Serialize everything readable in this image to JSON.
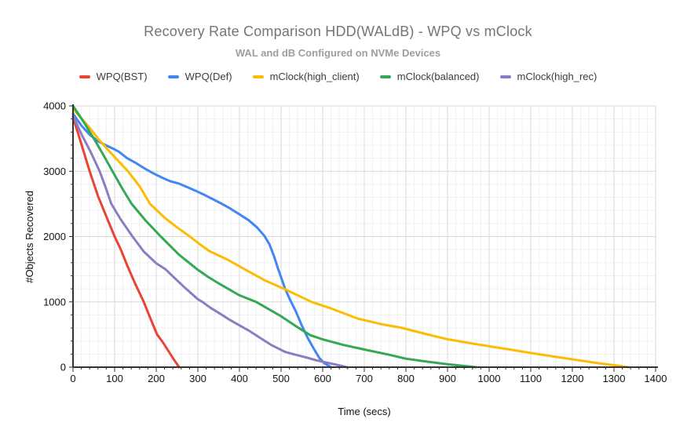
{
  "chart": {
    "title": "Recovery Rate Comparison HDD(WALdB) - WPQ vs mClock",
    "subtitle": "WAL and dB Configured on NVMe Devices",
    "xlabel": "Time (secs)",
    "ylabel": "#Objects Recovered"
  },
  "colors": {
    "title_text": "#757575",
    "subtitle_text": "#9e9e9e",
    "axis_text": "#111111",
    "axis_line": "#333333",
    "grid_major": "#d9d9d9",
    "grid_minor": "#f0f0f0",
    "background": "#ffffff"
  },
  "chart_data": {
    "type": "line",
    "title": "Recovery Rate Comparison HDD(WALdB) - WPQ vs mClock",
    "subtitle": "WAL and dB Configured on NVMe Devices",
    "xlabel": "Time (secs)",
    "ylabel": "#Objects Recovered",
    "xlim": [
      0,
      1400
    ],
    "ylim": [
      0,
      4000
    ],
    "x_tick_step": 100,
    "x_minor_step": 20,
    "y_tick_step": 1000,
    "y_minor_step": 200,
    "grid": true,
    "legend_position": "top",
    "series": [
      {
        "name": "WPQ(BST)",
        "color": "#ea4335",
        "points": [
          [
            0,
            3830
          ],
          [
            15,
            3520
          ],
          [
            40,
            3000
          ],
          [
            60,
            2620
          ],
          [
            85,
            2230
          ],
          [
            100,
            2000
          ],
          [
            115,
            1800
          ],
          [
            130,
            1560
          ],
          [
            150,
            1270
          ],
          [
            170,
            1000
          ],
          [
            185,
            760
          ],
          [
            202,
            500
          ],
          [
            215,
            390
          ],
          [
            230,
            240
          ],
          [
            243,
            110
          ],
          [
            255,
            0
          ]
        ]
      },
      {
        "name": "WPQ(Def)",
        "color": "#4285f4",
        "points": [
          [
            0,
            3880
          ],
          [
            20,
            3700
          ],
          [
            40,
            3560
          ],
          [
            60,
            3460
          ],
          [
            78,
            3400
          ],
          [
            95,
            3350
          ],
          [
            110,
            3300
          ],
          [
            130,
            3200
          ],
          [
            150,
            3130
          ],
          [
            170,
            3050
          ],
          [
            192,
            2970
          ],
          [
            215,
            2900
          ],
          [
            235,
            2845
          ],
          [
            255,
            2810
          ],
          [
            275,
            2755
          ],
          [
            295,
            2700
          ],
          [
            315,
            2640
          ],
          [
            335,
            2575
          ],
          [
            355,
            2510
          ],
          [
            375,
            2440
          ],
          [
            400,
            2340
          ],
          [
            422,
            2250
          ],
          [
            442,
            2140
          ],
          [
            460,
            2010
          ],
          [
            472,
            1880
          ],
          [
            483,
            1700
          ],
          [
            492,
            1520
          ],
          [
            501,
            1360
          ],
          [
            509,
            1210
          ],
          [
            521,
            1040
          ],
          [
            535,
            860
          ],
          [
            549,
            650
          ],
          [
            563,
            460
          ],
          [
            578,
            290
          ],
          [
            592,
            140
          ],
          [
            604,
            60
          ],
          [
            620,
            0
          ]
        ]
      },
      {
        "name": "mClock(high_client)",
        "color": "#fbbc04",
        "points": [
          [
            0,
            3950
          ],
          [
            20,
            3810
          ],
          [
            40,
            3665
          ],
          [
            60,
            3500
          ],
          [
            85,
            3320
          ],
          [
            110,
            3150
          ],
          [
            132,
            3000
          ],
          [
            160,
            2770
          ],
          [
            185,
            2500
          ],
          [
            220,
            2290
          ],
          [
            250,
            2140
          ],
          [
            281,
            2000
          ],
          [
            305,
            1880
          ],
          [
            328,
            1776
          ],
          [
            350,
            1710
          ],
          [
            370,
            1650
          ],
          [
            412,
            1500
          ],
          [
            460,
            1332
          ],
          [
            510,
            1190
          ],
          [
            540,
            1100
          ],
          [
            573,
            1000
          ],
          [
            620,
            900
          ],
          [
            684,
            745
          ],
          [
            740,
            660
          ],
          [
            787,
            607
          ],
          [
            850,
            505
          ],
          [
            900,
            428
          ],
          [
            950,
            372
          ],
          [
            1000,
            320
          ],
          [
            1050,
            270
          ],
          [
            1100,
            218
          ],
          [
            1150,
            168
          ],
          [
            1200,
            120
          ],
          [
            1250,
            72
          ],
          [
            1295,
            35
          ],
          [
            1335,
            0
          ]
        ]
      },
      {
        "name": "mClock(balanced)",
        "color": "#34a853",
        "points": [
          [
            0,
            4000
          ],
          [
            25,
            3760
          ],
          [
            50,
            3500
          ],
          [
            72,
            3260
          ],
          [
            95,
            3000
          ],
          [
            118,
            2740
          ],
          [
            141,
            2500
          ],
          [
            175,
            2240
          ],
          [
            211,
            2000
          ],
          [
            255,
            1720
          ],
          [
            298,
            1500
          ],
          [
            325,
            1380
          ],
          [
            353,
            1272
          ],
          [
            400,
            1100
          ],
          [
            440,
            1000
          ],
          [
            470,
            890
          ],
          [
            500,
            780
          ],
          [
            540,
            610
          ],
          [
            570,
            490
          ],
          [
            600,
            425
          ],
          [
            650,
            340
          ],
          [
            700,
            270
          ],
          [
            760,
            190
          ],
          [
            800,
            130
          ],
          [
            850,
            85
          ],
          [
            900,
            45
          ],
          [
            940,
            18
          ],
          [
            968,
            0
          ]
        ]
      },
      {
        "name": "mClock(high_rec)",
        "color": "#8e7cc3",
        "points": [
          [
            0,
            3850
          ],
          [
            20,
            3570
          ],
          [
            42,
            3300
          ],
          [
            64,
            3000
          ],
          [
            78,
            2760
          ],
          [
            92,
            2500
          ],
          [
            115,
            2260
          ],
          [
            143,
            2000
          ],
          [
            170,
            1770
          ],
          [
            200,
            1590
          ],
          [
            222,
            1500
          ],
          [
            240,
            1390
          ],
          [
            270,
            1210
          ],
          [
            300,
            1040
          ],
          [
            311,
            1000
          ],
          [
            330,
            910
          ],
          [
            353,
            820
          ],
          [
            375,
            730
          ],
          [
            400,
            640
          ],
          [
            425,
            550
          ],
          [
            447,
            460
          ],
          [
            475,
            345
          ],
          [
            509,
            235
          ],
          [
            535,
            190
          ],
          [
            560,
            150
          ],
          [
            585,
            105
          ],
          [
            610,
            70
          ],
          [
            635,
            35
          ],
          [
            658,
            0
          ]
        ]
      }
    ]
  }
}
